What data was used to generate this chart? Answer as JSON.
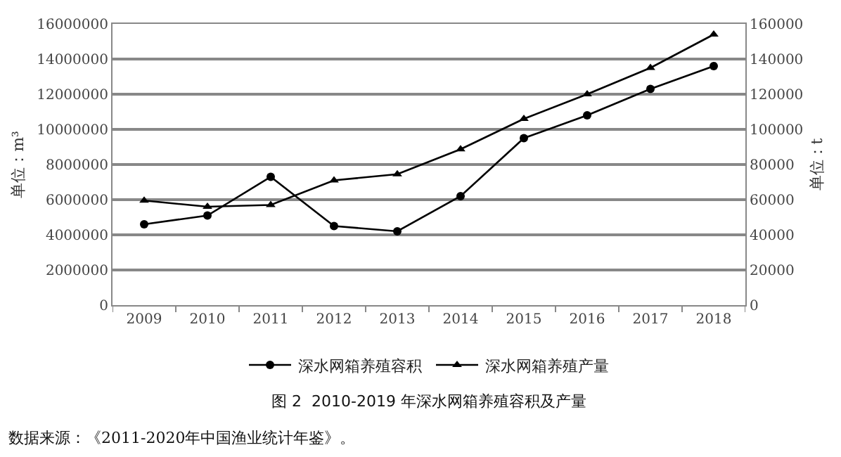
{
  "chart_data": {
    "type": "line",
    "title": "图 2  2010-2019 年深水网箱养殖容积及产量",
    "ylabel": "单位：m³",
    "y2label": "单位：t",
    "categories": [
      "2009",
      "2010",
      "2011",
      "2012",
      "2013",
      "2014",
      "2015",
      "2016",
      "2017",
      "2018"
    ],
    "series": [
      {
        "name": "深水网箱养殖容积",
        "color": "#000000",
        "marker": "circle",
        "values": [
          4600000,
          5100000,
          7300000,
          4500000,
          4200000,
          6200000,
          9500000,
          10800000,
          12300000,
          13600000
        ]
      },
      {
        "name": "深水网箱养殖产量",
        "color": "#000000",
        "marker": "triangle",
        "axis": "y2",
        "values": [
          59500,
          56000,
          57000,
          71000,
          74500,
          88700,
          106000,
          120000,
          135000,
          154000
        ]
      }
    ],
    "ylim": [
      0,
      16000000
    ],
    "yticks": [
      0,
      2000000,
      4000000,
      6000000,
      8000000,
      10000000,
      12000000,
      14000000,
      16000000
    ],
    "y2lim": [
      0,
      160000
    ],
    "y2ticks": [
      0,
      20000,
      40000,
      60000,
      80000,
      100000,
      120000,
      140000,
      160000
    ],
    "grid": "y",
    "legend": "bottom",
    "line_style": "solid",
    "annotations": [
      "数据来源：《2011-2020年中国渔业统计年鉴》。"
    ]
  }
}
